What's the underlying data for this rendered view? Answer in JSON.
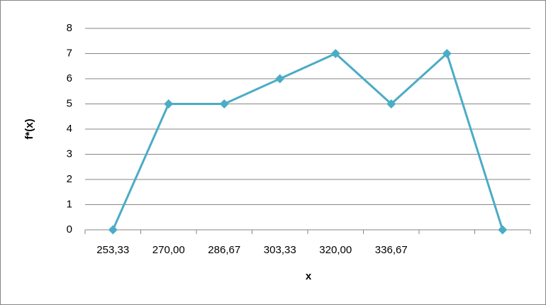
{
  "chart_data": {
    "type": "line",
    "x_label": "x",
    "y_label": "f*(x)",
    "categories": [
      "253,33",
      "270,00",
      "286,67",
      "303,33",
      "320,00",
      "336,67",
      null,
      null
    ],
    "series": [
      {
        "color": "#4bacc6",
        "values": [
          0,
          5,
          5,
          6,
          7,
          5,
          7,
          0
        ]
      }
    ],
    "ylim": [
      0,
      8
    ],
    "yticks": [
      0,
      1,
      2,
      3,
      4,
      5,
      6,
      7,
      8
    ],
    "grid": true
  }
}
